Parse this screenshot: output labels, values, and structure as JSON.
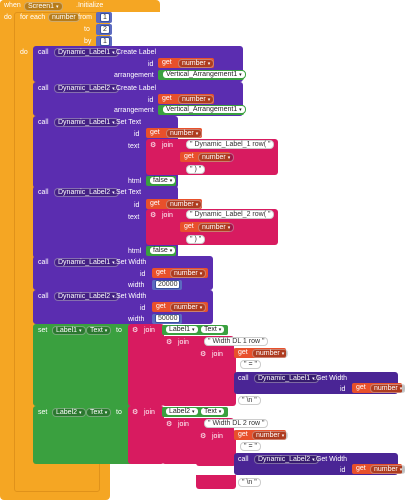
{
  "event": {
    "when": "when",
    "component": "Screen1",
    "event": ".Initialize",
    "do": "do"
  },
  "loop": {
    "for_each": "for each",
    "var": "number",
    "from": "from",
    "from_val": "1",
    "to": "to",
    "to_val": "2",
    "by": "by",
    "by_val": "1",
    "do": "do"
  },
  "common": {
    "call": "call",
    "get": "get",
    "set": "set",
    "to": "to",
    "join": "join",
    "id": "id",
    "text": "text",
    "html": "html",
    "width": "width",
    "arrangement": "arrangement",
    "false": "false",
    "number": "number",
    "Text": "Text",
    "getwidth": ".Get Width",
    "createlabel": ".Create Label",
    "settext": ".Set Text",
    "setwidth": ".Set Width",
    "paren": ")",
    "newline": "\\n"
  },
  "components": {
    "dl1": "Dynamic_Label1",
    "dl2": "Dynamic_Label2",
    "va1": "Vertical_Arrangement1",
    "label1": "Label1",
    "label2": "Label2"
  },
  "strings": {
    "dl1row": "Dynamic_Label_1 row(",
    "dl2row": "Dynamic_Label_2 row(",
    "wdl1": "Width DL 1 row",
    "wdl2": "Width DL 2 row",
    "eq": "="
  },
  "values": {
    "w1": "20000",
    "w2": "50000"
  }
}
